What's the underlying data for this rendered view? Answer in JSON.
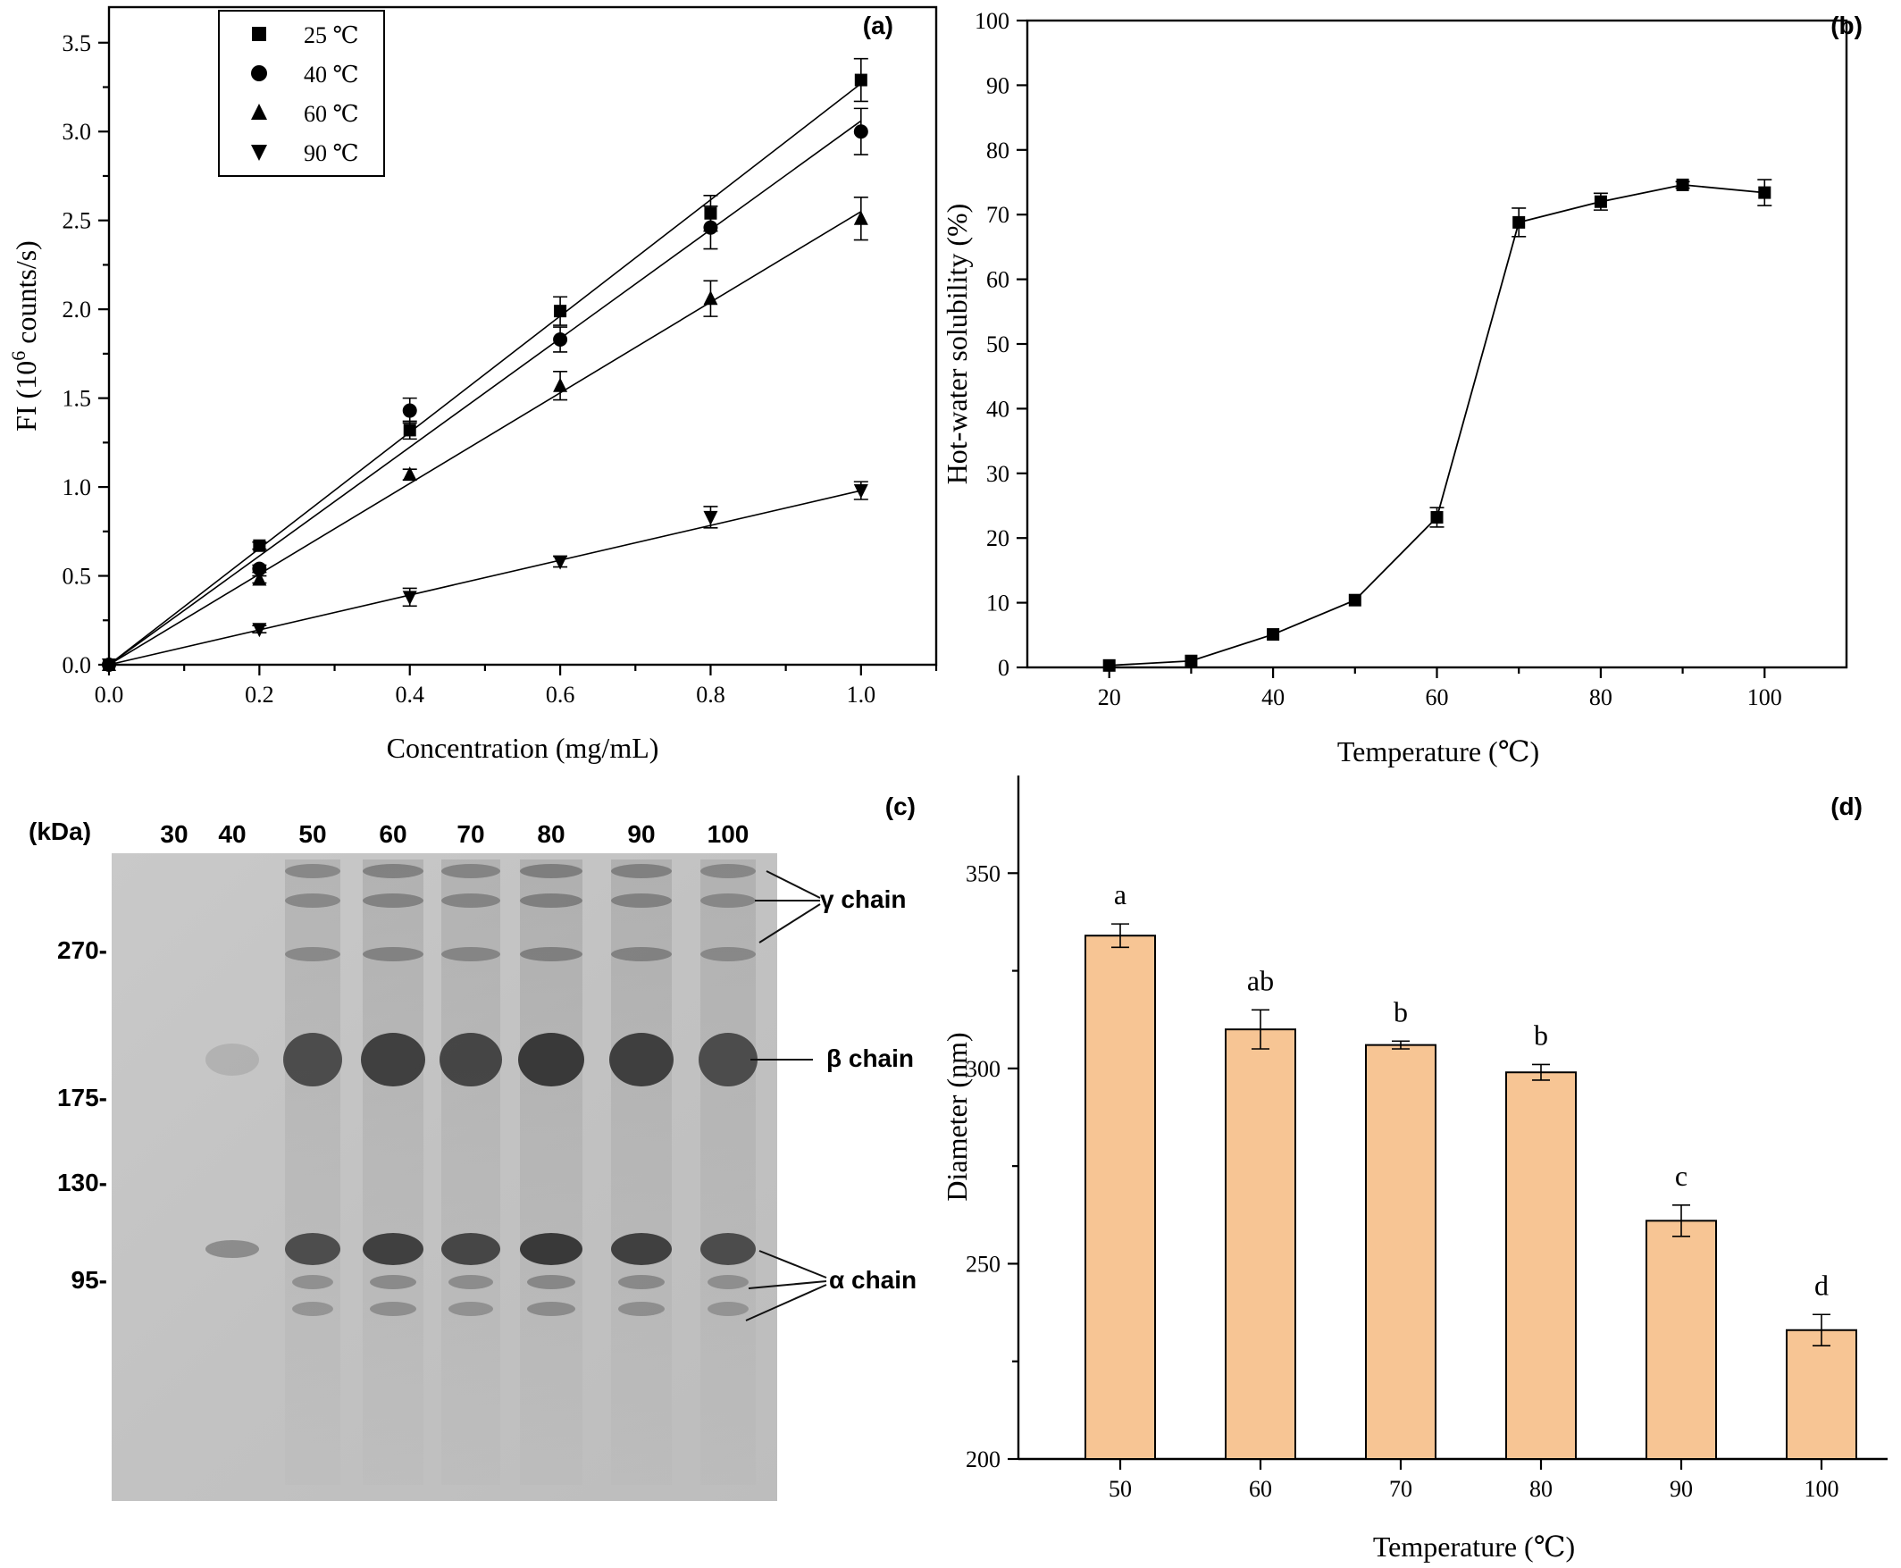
{
  "chart_data": [
    {
      "panel": "(a)",
      "type": "scatter",
      "xlabel": "Concentration (mg/mL)",
      "ylabel_prefix": "FI (10",
      "ylabel_sup": "6",
      "ylabel_suffix": " counts/s)",
      "xlim": [
        0,
        1.1
      ],
      "ylim": [
        0,
        3.7
      ],
      "xticks": [
        0.0,
        0.2,
        0.4,
        0.6,
        0.8,
        1.0
      ],
      "xtick_labels": [
        "0.0",
        "0.2",
        "0.4",
        "0.6",
        "0.8",
        "1.0"
      ],
      "yticks": [
        0.0,
        0.5,
        1.0,
        1.5,
        2.0,
        2.5,
        3.0,
        3.5
      ],
      "ytick_labels": [
        "0.0",
        "0.5",
        "1.0",
        "1.5",
        "2.0",
        "2.5",
        "3.0",
        "3.5"
      ],
      "legend_position": "top-left",
      "fit_lines": true,
      "grid": false,
      "series": [
        {
          "name": "25 ℃",
          "marker": "square",
          "x": [
            0,
            0.2,
            0.4,
            0.6,
            0.8,
            1.0
          ],
          "y": [
            0,
            0.67,
            1.32,
            1.99,
            2.54,
            3.29
          ],
          "err": [
            0,
            0.02,
            0.05,
            0.08,
            0.1,
            0.12
          ],
          "slope": 3.27
        },
        {
          "name": "40 ℃",
          "marker": "circle",
          "x": [
            0,
            0.2,
            0.4,
            0.6,
            0.8,
            1.0
          ],
          "y": [
            0,
            0.54,
            1.43,
            1.83,
            2.46,
            3.0
          ],
          "err": [
            0,
            0.02,
            0.07,
            0.07,
            0.12,
            0.13
          ],
          "slope": 3.06
        },
        {
          "name": "60 ℃",
          "marker": "triangle-up",
          "x": [
            0,
            0.2,
            0.4,
            0.6,
            0.8,
            1.0
          ],
          "y": [
            0,
            0.48,
            1.07,
            1.57,
            2.06,
            2.51
          ],
          "err": [
            0,
            0.02,
            0.03,
            0.08,
            0.1,
            0.12
          ],
          "slope": 2.55
        },
        {
          "name": "90 ℃",
          "marker": "triangle-down",
          "x": [
            0,
            0.2,
            0.4,
            0.6,
            0.8,
            1.0
          ],
          "y": [
            0,
            0.2,
            0.38,
            0.58,
            0.83,
            0.98
          ],
          "err": [
            0,
            0.02,
            0.05,
            0.03,
            0.06,
            0.05
          ],
          "slope": 0.98
        }
      ]
    },
    {
      "panel": "(b)",
      "type": "line",
      "xlabel": "Temperature (℃)",
      "ylabel": "Hot-water solubility (%)",
      "xlim": [
        10,
        110
      ],
      "ylim": [
        0,
        100
      ],
      "xticks": [
        20,
        40,
        60,
        80,
        100
      ],
      "yticks": [
        0,
        10,
        20,
        30,
        40,
        50,
        60,
        70,
        80,
        90,
        100
      ],
      "grid": false,
      "series": [
        {
          "name": "",
          "marker": "square",
          "x": [
            20,
            30,
            40,
            50,
            60,
            70,
            80,
            90,
            100
          ],
          "y": [
            0.3,
            1.0,
            5.1,
            10.4,
            23.2,
            68.8,
            72.0,
            74.6,
            73.4
          ],
          "err": [
            0,
            0,
            0,
            0,
            1.5,
            2.2,
            1.3,
            0.5,
            2.0
          ]
        }
      ]
    },
    {
      "panel": "(d)",
      "type": "bar",
      "xlabel": "Temperature (℃)",
      "ylabel": "Diameter (nm)",
      "categories": [
        "50",
        "60",
        "70",
        "80",
        "90",
        "100"
      ],
      "values": [
        334,
        310,
        306,
        299,
        261,
        233
      ],
      "err": [
        3,
        5,
        1,
        2,
        4,
        4
      ],
      "letters": [
        "a",
        "ab",
        "b",
        "b",
        "c",
        "d"
      ],
      "ylim": [
        200,
        375
      ],
      "yticks": [
        200,
        250,
        300,
        350
      ],
      "bar_color": "#F7C594",
      "grid": false
    }
  ],
  "gel": {
    "panel": "(c)",
    "unit_label": "(kDa)",
    "lane_labels": [
      "30",
      "40",
      "50",
      "60",
      "70",
      "80",
      "90",
      "100"
    ],
    "markers": [
      "270-",
      "175-",
      "130-",
      "95-"
    ],
    "band_labels": {
      "gamma": "γ chain",
      "beta": "β chain",
      "alpha": "α chain"
    }
  }
}
